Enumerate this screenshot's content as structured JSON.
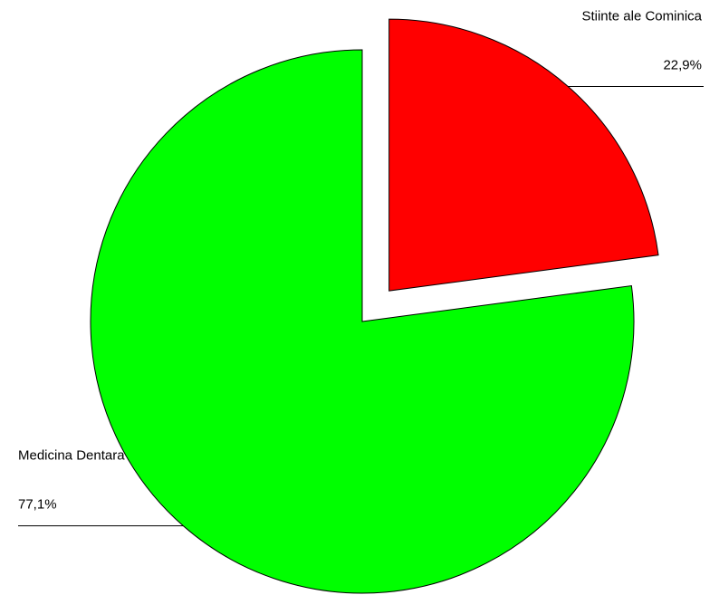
{
  "chart_data": {
    "type": "pie",
    "categories": [
      "Stiinte ale Cominica",
      "Medicina Dentara"
    ],
    "values": [
      22.9,
      77.1
    ],
    "value_labels": [
      "22,9%",
      "77,1%"
    ],
    "colors": [
      "#ff0000",
      "#00ff00"
    ]
  }
}
